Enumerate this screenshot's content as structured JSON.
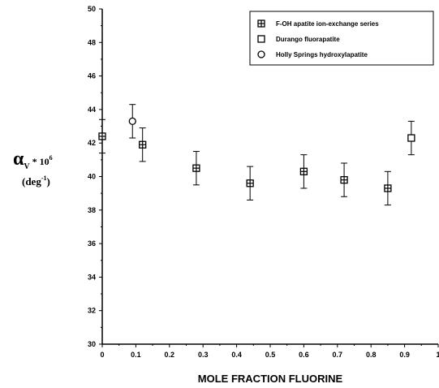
{
  "chart_data": {
    "type": "scatter",
    "xlabel": "MOLE FRACTION FLUORINE",
    "ylabel": {
      "symbol": "α",
      "subscript": "V",
      "multiplier": " * 10",
      "exponent": "6",
      "unit_open": "(deg",
      "unit_exponent": "-1",
      "unit_close": ")"
    },
    "xlim": [
      0,
      1
    ],
    "ylim": [
      30,
      50
    ],
    "x_ticks": [
      "0",
      "0.1",
      "0.2",
      "0.3",
      "0.4",
      "0.5",
      "0.6",
      "0.7",
      "0.8",
      "0.9",
      "1"
    ],
    "y_ticks": [
      "30",
      "32",
      "34",
      "36",
      "38",
      "40",
      "42",
      "44",
      "46",
      "48",
      "50"
    ],
    "legend_position": "top-right",
    "grid": false,
    "series": [
      {
        "name": "F-OH apatite ion-exchange series",
        "marker": "square-plus",
        "points": [
          {
            "x": 0.0,
            "y": 42.4,
            "err": 1.0
          },
          {
            "x": 0.12,
            "y": 41.9,
            "err": 1.0
          },
          {
            "x": 0.28,
            "y": 40.5,
            "err": 1.0
          },
          {
            "x": 0.44,
            "y": 39.6,
            "err": 1.0
          },
          {
            "x": 0.6,
            "y": 40.3,
            "err": 1.0
          },
          {
            "x": 0.72,
            "y": 39.8,
            "err": 1.0
          },
          {
            "x": 0.85,
            "y": 39.3,
            "err": 1.0
          }
        ]
      },
      {
        "name": "Durango fluorapatite",
        "marker": "square",
        "points": [
          {
            "x": 0.92,
            "y": 42.3,
            "err": 1.0
          }
        ]
      },
      {
        "name": "Holly Springs hydroxylapatite",
        "marker": "circle",
        "points": [
          {
            "x": 0.09,
            "y": 43.3,
            "err": 1.0
          }
        ]
      }
    ]
  }
}
